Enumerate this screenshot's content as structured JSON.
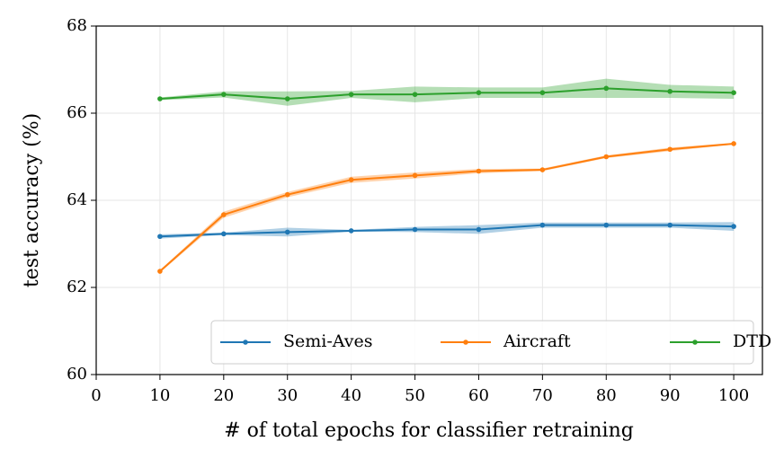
{
  "chart_data": {
    "type": "line",
    "xlabel": "# of total epochs for classifier retraining",
    "ylabel": "test accuracy (%)",
    "x": [
      10,
      20,
      30,
      40,
      50,
      60,
      70,
      80,
      90,
      100
    ],
    "series": [
      {
        "name": "Semi-Aves",
        "color": "#1f77b4",
        "values": [
          63.17,
          63.23,
          63.27,
          63.3,
          63.33,
          63.33,
          63.43,
          63.43,
          63.43,
          63.4
        ],
        "lower": [
          63.12,
          63.2,
          63.17,
          63.28,
          63.27,
          63.23,
          63.37,
          63.37,
          63.37,
          63.3
        ],
        "upper": [
          63.22,
          63.26,
          63.37,
          63.32,
          63.39,
          63.43,
          63.49,
          63.49,
          63.49,
          63.5
        ]
      },
      {
        "name": "Aircraft",
        "color": "#ff7f0e",
        "values": [
          62.37,
          63.67,
          64.13,
          64.47,
          64.57,
          64.67,
          64.7,
          65.0,
          65.17,
          65.3
        ],
        "lower": [
          62.34,
          63.6,
          64.07,
          64.4,
          64.5,
          64.62,
          64.67,
          64.97,
          65.13,
          65.28
        ],
        "upper": [
          62.4,
          63.74,
          64.19,
          64.54,
          64.64,
          64.72,
          64.73,
          65.03,
          65.21,
          65.32
        ]
      },
      {
        "name": "DTD",
        "color": "#2ca02c",
        "values": [
          66.33,
          66.43,
          66.33,
          66.43,
          66.43,
          66.47,
          66.47,
          66.57,
          66.5,
          66.47
        ],
        "lower": [
          66.3,
          66.36,
          66.17,
          66.35,
          66.25,
          66.35,
          66.35,
          66.35,
          66.35,
          66.33
        ],
        "upper": [
          66.36,
          66.5,
          66.5,
          66.51,
          66.61,
          66.59,
          66.59,
          66.79,
          66.65,
          66.61
        ]
      }
    ],
    "xlim": [
      0,
      104.5
    ],
    "xticks": [
      0,
      10,
      20,
      30,
      40,
      50,
      60,
      70,
      80,
      90,
      100
    ],
    "ylim": [
      60,
      68
    ],
    "yticks": [
      60,
      62,
      64,
      66,
      68
    ],
    "grid": true,
    "legend": "lower right"
  }
}
